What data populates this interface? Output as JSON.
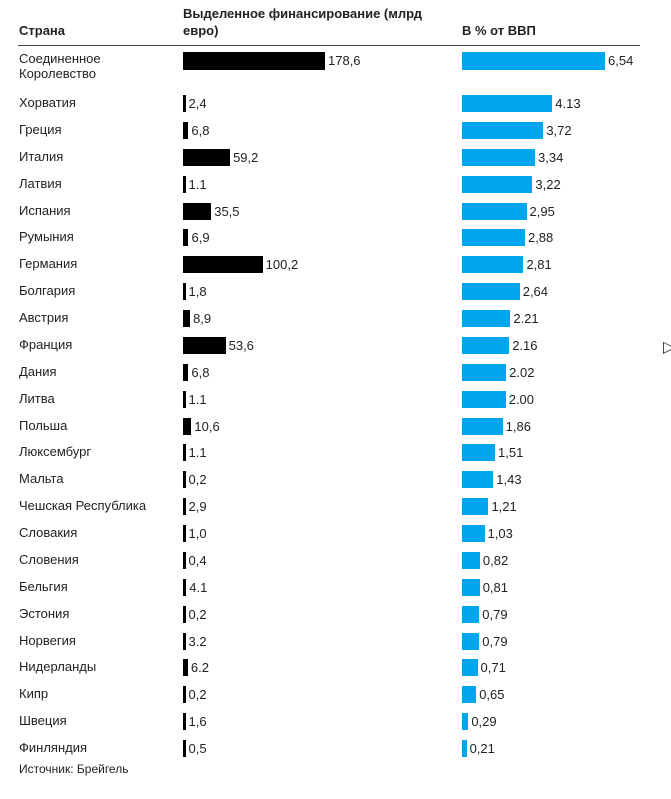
{
  "header": {
    "country": "Страна",
    "funding": "Выделенное финансирование (млрд евро)",
    "gdp": "В % от ВВП"
  },
  "source": "Источник: Брейгель",
  "colors": {
    "funding_bar": "#000000",
    "gdp_bar": "#00a5f0"
  },
  "chart_data": {
    "type": "bar",
    "orientation": "horizontal",
    "categories": [
      "Соединенное Королевство",
      "Хорватия",
      "Греция",
      "Италия",
      "Латвия",
      "Испания",
      "Румыния",
      "Германия",
      "Болгария",
      "Австрия",
      "Франция",
      "Дания",
      "Литва",
      "Польша",
      "Люксембург",
      "Мальта",
      "Чешская Республика",
      "Словакия",
      "Словения",
      "Бельгия",
      "Эстония",
      "Норвегия",
      "Нидерланды",
      "Кипр",
      "Швеция",
      "Финляндия"
    ],
    "series": [
      {
        "name": "Выделенное финансирование (млрд евро)",
        "values": [
          178.6,
          2.4,
          6.8,
          59.2,
          1.1,
          35.5,
          6.9,
          100.2,
          1.8,
          8.9,
          53.6,
          6.8,
          1.1,
          10.6,
          1.1,
          0.2,
          2.9,
          1.0,
          0.4,
          4.1,
          0.2,
          3.2,
          6.2,
          0.2,
          1.6,
          0.5
        ],
        "labels": [
          "178,6",
          "2,4",
          "6,8",
          "59,2",
          "1.1",
          "35,5",
          "6,9",
          "100,2",
          "1,8",
          "8,9",
          "53,6",
          "6,8",
          "1.1",
          "10,6",
          "1.1",
          "0,2",
          "2,9",
          "1,0",
          "0,4",
          "4.1",
          "0,2",
          "3.2",
          "6.2",
          "0,2",
          "1,6",
          "0,5"
        ]
      },
      {
        "name": "В % от ВВП",
        "values": [
          6.54,
          4.13,
          3.72,
          3.34,
          3.22,
          2.95,
          2.88,
          2.81,
          2.64,
          2.21,
          2.16,
          2.02,
          2.0,
          1.86,
          1.51,
          1.43,
          1.21,
          1.03,
          0.82,
          0.81,
          0.79,
          0.79,
          0.71,
          0.65,
          0.29,
          0.21
        ],
        "labels": [
          "6,54",
          "4.13",
          "3,72",
          "3,34",
          "3,22",
          "2,95",
          "2,88",
          "2,81",
          "2,64",
          "2.21",
          "2.16",
          "2.02",
          "2.00",
          "1,86",
          "1,51",
          "1,43",
          "1,21",
          "1,03",
          "0,82",
          "0,81",
          "0,79",
          "0,79",
          "0,71",
          "0,65",
          "0,29",
          "0,21"
        ]
      }
    ],
    "xlim_funding": [
      0,
      178.6
    ],
    "xlim_gdp": [
      0,
      6.54
    ]
  }
}
